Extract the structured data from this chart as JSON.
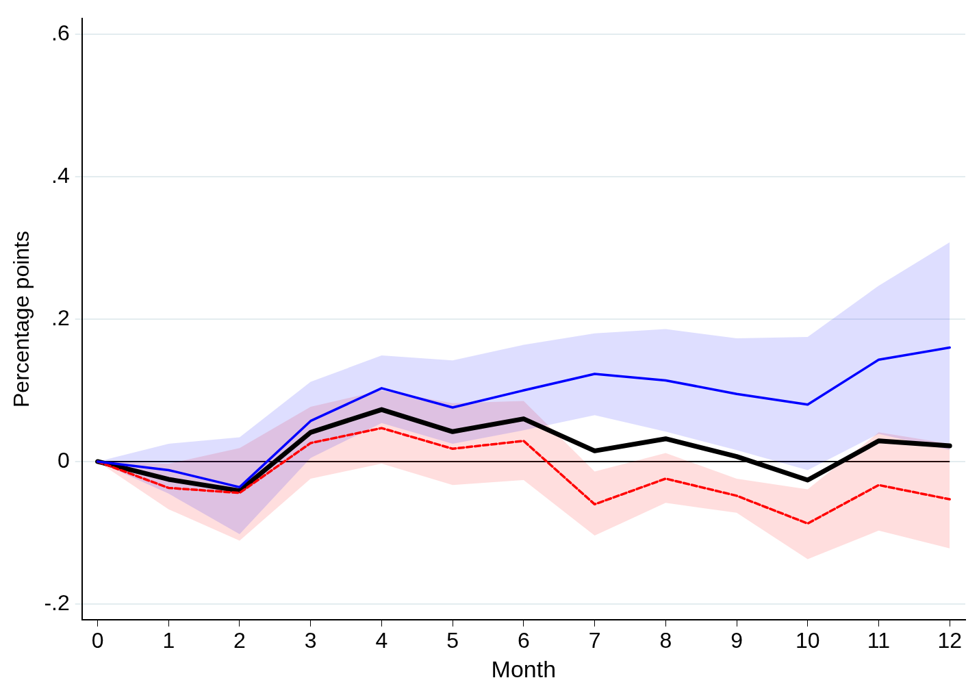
{
  "chart_data": {
    "type": "line",
    "xlabel": "Month",
    "ylabel": "Percentage points",
    "x": [
      0,
      1,
      2,
      3,
      4,
      5,
      6,
      7,
      8,
      9,
      10,
      11,
      12
    ],
    "series": [
      {
        "color": "#0000ff",
        "values": [
          0,
          -0.012,
          -0.036,
          0.057,
          0.103,
          0.076,
          0.1,
          0.123,
          0.114,
          0.095,
          0.08,
          0.143,
          0.16
        ],
        "lower": [
          0,
          -0.045,
          -0.102,
          0.005,
          0.054,
          0.025,
          0.044,
          0.065,
          0.042,
          0.016,
          -0.012,
          0.039,
          0.016
        ],
        "upper": [
          0,
          0.025,
          0.034,
          0.112,
          0.149,
          0.142,
          0.164,
          0.18,
          0.186,
          0.173,
          0.175,
          0.247,
          0.308
        ],
        "line_style": "solid"
      },
      {
        "color": "#ff0000",
        "values": [
          0,
          -0.037,
          -0.044,
          0.026,
          0.047,
          0.018,
          0.029,
          -0.06,
          -0.024,
          -0.048,
          -0.087,
          -0.033,
          -0.053
        ],
        "lower": [
          0,
          -0.067,
          -0.111,
          -0.024,
          -0.003,
          -0.033,
          -0.026,
          -0.104,
          -0.058,
          -0.072,
          -0.137,
          -0.097,
          -0.122
        ],
        "upper": [
          0,
          -0.003,
          0.019,
          0.077,
          0.1,
          0.082,
          0.085,
          -0.014,
          0.012,
          -0.024,
          -0.039,
          0.041,
          0.025
        ],
        "line_style": "dashed"
      },
      {
        "color": "#000000",
        "values": [
          0,
          -0.025,
          -0.041,
          0.041,
          0.073,
          0.042,
          0.06,
          0.015,
          0.032,
          0.007,
          -0.026,
          0.029,
          0.022
        ],
        "line_style": "solid"
      }
    ],
    "xlim": [
      -0.22,
      12.22
    ],
    "xticks": [
      0,
      1,
      2,
      3,
      4,
      5,
      6,
      7,
      8,
      9,
      10,
      11,
      12
    ],
    "ylim": [
      -0.222,
      0.622
    ],
    "yticks": [
      {
        "value": -0.2,
        "label": "-.2"
      },
      0,
      {
        "value": 0.2,
        "label": ".2"
      },
      {
        "value": 0.4,
        "label": ".4"
      },
      {
        "value": 0.6,
        "label": ".6"
      }
    ],
    "ref_lines": [
      {
        "axis": "y",
        "value": 0,
        "color": "#000000"
      }
    ],
    "grid": "y",
    "legend": false,
    "marker": "none"
  }
}
